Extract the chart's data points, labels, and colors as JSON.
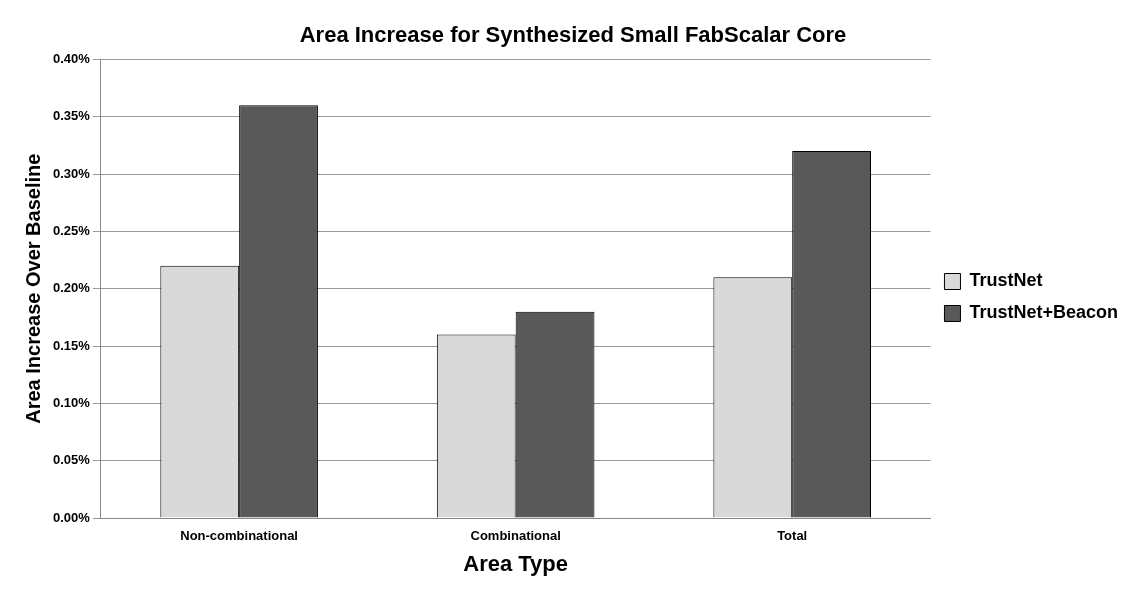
{
  "chart_data": {
    "type": "bar",
    "title": "Area Increase for Synthesized Small FabScalar Core",
    "xlabel": "Area Type",
    "ylabel": "Area Increase Over Baseline",
    "categories": [
      "Non-combinational",
      "Combinational",
      "Total"
    ],
    "series": [
      {
        "name": "TrustNet",
        "color": "#d9d9d9",
        "values": [
          0.22,
          0.16,
          0.21
        ]
      },
      {
        "name": "TrustNet+Beacon",
        "color": "#595959",
        "values": [
          0.36,
          0.18,
          0.32
        ]
      }
    ],
    "ylim": [
      0,
      0.4
    ],
    "yticks": [
      {
        "value": 0,
        "label": "0.00%"
      },
      {
        "value": 0.05,
        "label": "0.05%"
      },
      {
        "value": 0.1,
        "label": "0.10%"
      },
      {
        "value": 0.15,
        "label": "0.15%"
      },
      {
        "value": 0.2,
        "label": "0.20%"
      },
      {
        "value": 0.25,
        "label": "0.25%"
      },
      {
        "value": 0.3,
        "label": "0.30%"
      },
      {
        "value": 0.35,
        "label": "0.35%"
      },
      {
        "value": 0.4,
        "label": "0.40%"
      }
    ],
    "grid": "y",
    "legend": "right"
  }
}
